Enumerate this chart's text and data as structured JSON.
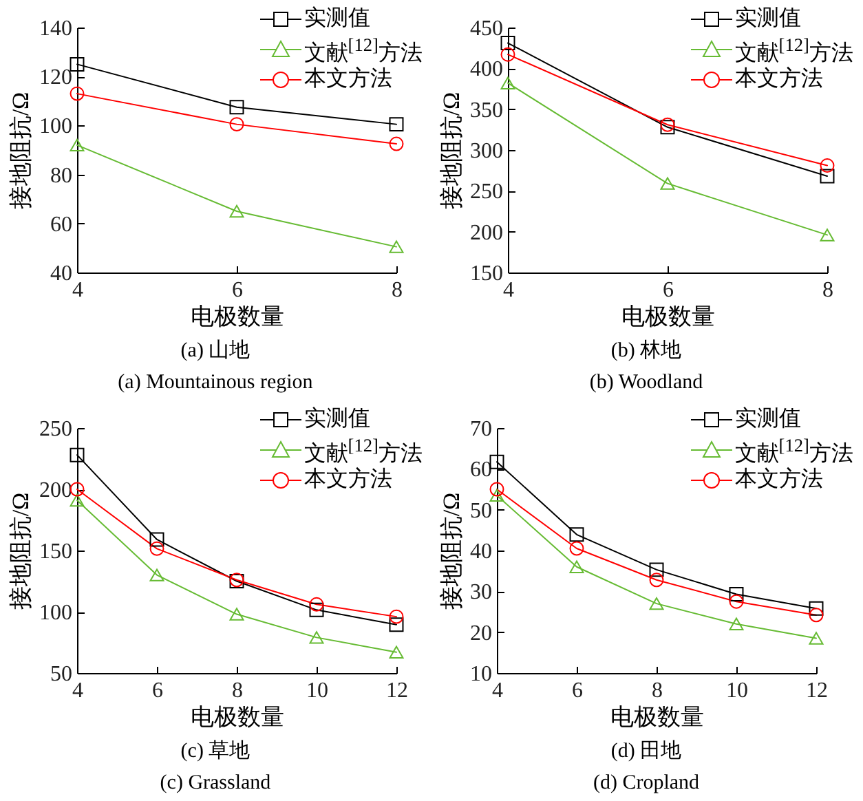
{
  "chart_data": [
    {
      "type": "line",
      "xlabel": "电极数量",
      "ylabel": "接地阻抗/Ω",
      "x": [
        4,
        6,
        8
      ],
      "xlim": [
        4,
        8
      ],
      "xticks": [
        4,
        6,
        8
      ],
      "ylim": [
        40,
        140
      ],
      "yticks": [
        40,
        60,
        80,
        100,
        120,
        140
      ],
      "legend": "top right",
      "grid": false,
      "annotations": [
        "(a) 山地",
        "(a) Mountainous region"
      ],
      "series": [
        {
          "name": "实测值",
          "color": "#000000",
          "marker": "square",
          "values": [
            125,
            107.5,
            100.5
          ]
        },
        {
          "name": "文献$^{[12]}$方法",
          "color": "#66bb33",
          "marker": "triangle",
          "values": [
            92,
            65,
            50.5
          ]
        },
        {
          "name": "本文方法",
          "color": "#ff0000",
          "marker": "circle",
          "values": [
            113,
            100.5,
            92.5
          ]
        }
      ]
    },
    {
      "type": "line",
      "xlabel": "电极数量",
      "ylabel": "接地阻抗/Ω",
      "x": [
        4,
        6,
        8
      ],
      "xlim": [
        4,
        8
      ],
      "xticks": [
        4,
        6,
        8
      ],
      "ylim": [
        150,
        450
      ],
      "yticks": [
        150,
        200,
        250,
        300,
        350,
        400,
        450
      ],
      "legend": "top right",
      "grid": false,
      "annotations": [
        "(b) 林地",
        "(b) Woodland"
      ],
      "series": [
        {
          "name": "实测值",
          "color": "#000000",
          "marker": "square",
          "values": [
            431,
            328,
            268
          ]
        },
        {
          "name": "文献$^{[12]}$方法",
          "color": "#66bb33",
          "marker": "triangle",
          "values": [
            382,
            259,
            196
          ]
        },
        {
          "name": "本文方法",
          "color": "#ff0000",
          "marker": "circle",
          "values": [
            417,
            331,
            281
          ]
        }
      ]
    },
    {
      "type": "line",
      "xlabel": "电极数量",
      "ylabel": "接地阻抗/Ω",
      "x": [
        4,
        6,
        8,
        10,
        12
      ],
      "xlim": [
        4,
        12
      ],
      "xticks": [
        4,
        6,
        8,
        10,
        12
      ],
      "ylim": [
        50,
        250
      ],
      "yticks": [
        50,
        100,
        150,
        200,
        250
      ],
      "legend": "top right",
      "grid": false,
      "annotations": [
        "(c) 草地",
        "(c) Grassland"
      ],
      "series": [
        {
          "name": "实测值",
          "color": "#000000",
          "marker": "square",
          "values": [
            228,
            159,
            125,
            101.5,
            89.5
          ]
        },
        {
          "name": "文献$^{[12]}$方法",
          "color": "#66bb33",
          "marker": "triangle",
          "values": [
            191,
            130,
            98,
            79,
            67
          ]
        },
        {
          "name": "本文方法",
          "color": "#ff0000",
          "marker": "circle",
          "values": [
            200,
            151.5,
            126,
            106,
            96
          ]
        }
      ]
    },
    {
      "type": "line",
      "xlabel": "电极数量",
      "ylabel": "接地阻抗/Ω",
      "x": [
        4,
        6,
        8,
        10,
        12
      ],
      "xlim": [
        4,
        12
      ],
      "xticks": [
        4,
        6,
        8,
        10,
        12
      ],
      "ylim": [
        10,
        70
      ],
      "yticks": [
        10,
        20,
        30,
        40,
        50,
        60,
        70
      ],
      "legend": "top right",
      "grid": false,
      "annotations": [
        "(d) 田地",
        "(d) Cropland"
      ],
      "series": [
        {
          "name": "实测值",
          "color": "#000000",
          "marker": "square",
          "values": [
            61.7,
            43.9,
            35.3,
            29.3,
            25.8
          ]
        },
        {
          "name": "文献$^{[12]}$方法",
          "color": "#66bb33",
          "marker": "triangle",
          "values": [
            53.5,
            36,
            27,
            22,
            18.5
          ]
        },
        {
          "name": "本文方法",
          "color": "#ff0000",
          "marker": "circle",
          "values": [
            55,
            40.5,
            32.8,
            27.5,
            24.2
          ]
        }
      ]
    }
  ]
}
